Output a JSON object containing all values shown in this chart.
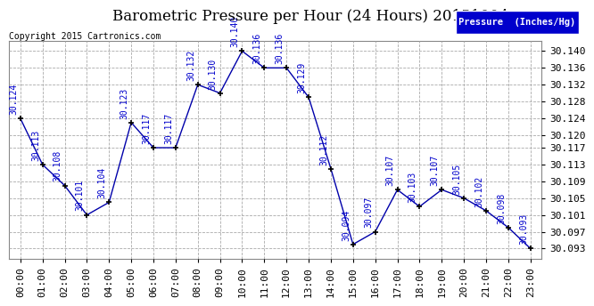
{
  "title": "Barometric Pressure per Hour (24 Hours) 20151004",
  "copyright": "Copyright 2015 Cartronics.com",
  "legend_label": "Pressure  (Inches/Hg)",
  "hours": [
    "00:00",
    "01:00",
    "02:00",
    "03:00",
    "04:00",
    "05:00",
    "06:00",
    "07:00",
    "08:00",
    "09:00",
    "10:00",
    "11:00",
    "12:00",
    "13:00",
    "14:00",
    "15:00",
    "16:00",
    "17:00",
    "18:00",
    "19:00",
    "20:00",
    "21:00",
    "22:00",
    "23:00"
  ],
  "values": [
    30.124,
    30.113,
    30.108,
    30.101,
    30.104,
    30.123,
    30.117,
    30.117,
    30.132,
    30.13,
    30.14,
    30.136,
    30.136,
    30.129,
    30.112,
    30.094,
    30.097,
    30.107,
    30.103,
    30.107,
    30.105,
    30.102,
    30.098,
    30.093
  ],
  "ylim_min": 30.0905,
  "ylim_max": 30.1425,
  "yticks": [
    30.093,
    30.097,
    30.101,
    30.105,
    30.109,
    30.113,
    30.117,
    30.12,
    30.124,
    30.128,
    30.132,
    30.136,
    30.14
  ],
  "ytick_labels": [
    "30.093",
    "30.097",
    "30.101",
    "30.105",
    "30.109",
    "30.113",
    "30.117",
    "30.120",
    "30.124",
    "30.128",
    "30.132",
    "30.136",
    "30.140"
  ],
  "line_color": "#0000aa",
  "marker_color": "#000000",
  "label_color": "#0000cc",
  "grid_color": "#aaaaaa",
  "plot_bg_color": "#ffffff",
  "fig_bg_color": "#ffffff",
  "title_color": "#000000",
  "copyright_color": "#000000",
  "legend_bg": "#0000cc",
  "legend_text_color": "#ffffff",
  "title_fontsize": 12,
  "tick_fontsize": 8,
  "label_fontsize": 7,
  "copyright_fontsize": 7
}
